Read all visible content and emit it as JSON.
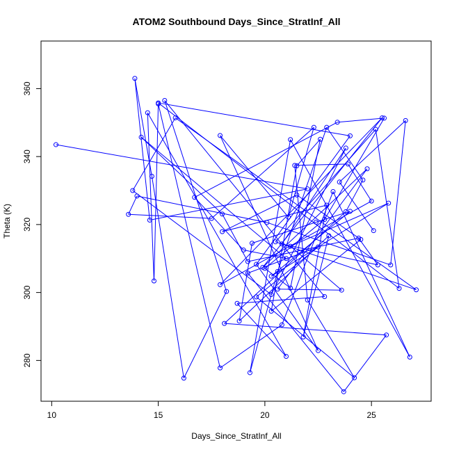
{
  "chart_data": {
    "type": "line",
    "title": "ATOM2 Southbound Days_Since_StratInf_All",
    "xlabel": "Days_Since_StratInf_All",
    "ylabel": "Theta (K)",
    "xlim": [
      9.5,
      27.8
    ],
    "ylim": [
      268,
      374
    ],
    "xticks": [
      10,
      15,
      20,
      25
    ],
    "yticks": [
      280,
      300,
      320,
      340,
      360
    ],
    "grid": false,
    "legend": "none",
    "marker": "open-circle",
    "color": "#0000ff",
    "series": [
      {
        "x": [
          10.2,
          22.0,
          14.6,
          13.9,
          14.7,
          16.2,
          18.2,
          15.3,
          22.8,
          18.7,
          21.0,
          14.5,
          14.8,
          15.0,
          17.9,
          20.8,
          23.2,
          26.8,
          21.2,
          19.3,
          20.6,
          22.9,
          24.6,
          23.8,
          18.1,
          25.7,
          23.7,
          19.2,
          22.5,
          19.6,
          24.2,
          22.0,
          21.4,
          23.9,
          25.0,
          17.9,
          25.5,
          19.9,
          24.8,
          20.6,
          23.6,
          21.2,
          25.8,
          20.3,
          24.0,
          22.4,
          19.4,
          18.8,
          23.0,
          21.8,
          22.9,
          18.0,
          21.5,
          24.5,
          20.3,
          21.5,
          22.6,
          21.2,
          20.0,
          22.8,
          25.6,
          23.4,
          16.7,
          19.0,
          21.0,
          14.2,
          18.0,
          19.2,
          24.4,
          25.3,
          20.8,
          23.8,
          20.3,
          13.8,
          15.8,
          27.1,
          20.5,
          25.2,
          26.3,
          15.0,
          24.0,
          19.6,
          22.5,
          17.9,
          21.1,
          22.3,
          17.5,
          13.6,
          14.0,
          20.1,
          25.9,
          26.6,
          23.5,
          25.1
        ],
        "y": [
          343.5,
          330.5,
          321.3,
          363.0,
          334.2,
          274.8,
          300.3,
          356.5,
          298.8,
          296.8,
          281.2,
          352.9,
          303.4,
          355.5,
          277.8,
          290.5,
          329.7,
          281.0,
          345.0,
          276.4,
          306.2,
          348.6,
          333.1,
          323.8,
          290.9,
          287.5,
          270.8,
          305.7,
          313.4,
          298.7,
          274.9,
          297.8,
          337.4,
          337.8,
          326.9,
          302.3,
          351.4,
          307.4,
          336.4,
          301.0,
          300.7,
          313.6,
          326.3,
          304.8,
          323.9,
          320.7,
          314.5,
          291.6,
          316.7,
          286.9,
          325.7,
          317.9,
          328.7,
          315.6,
          294.5,
          337.3,
          345.1,
          301.3,
          307.1,
          321.5,
          351.3,
          350.1,
          328.0,
          312.5,
          310.0,
          345.7,
          323.1,
          309.1,
          316.0,
          308.1,
          314.3,
          342.5,
          299.4,
          330.0,
          351.4,
          300.8,
          314.9,
          348.0,
          301.2,
          355.8,
          346.1,
          308.3,
          282.9,
          346.2,
          322.2,
          348.6,
          321.8,
          323.0,
          328.4,
          320.6,
          308.1,
          350.6,
          332.5,
          318.2
        ]
      }
    ]
  }
}
